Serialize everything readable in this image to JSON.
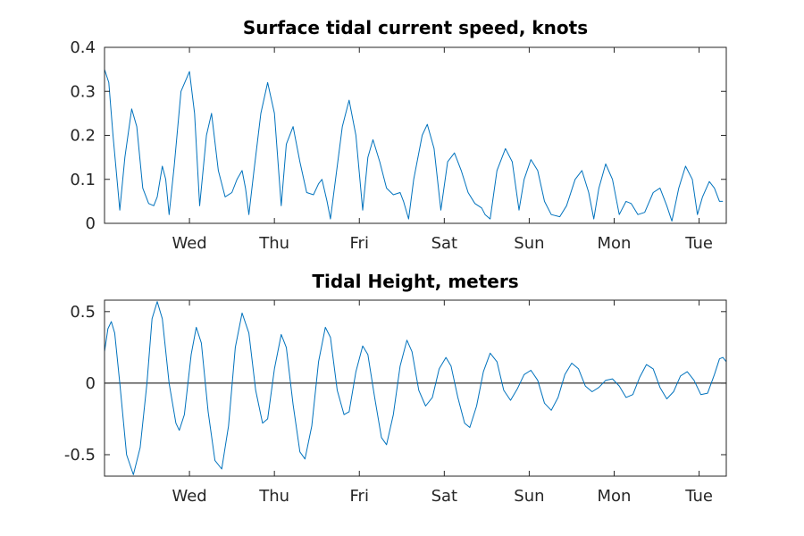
{
  "colors": {
    "series": "#0072BD",
    "axis": "#262626",
    "zero_line": "#000000"
  },
  "chart_data": [
    {
      "type": "line",
      "title": "Surface tidal current speed, knots",
      "xlabel": "",
      "ylabel": "",
      "xlim": [
        0,
        8
      ],
      "ylim": [
        0,
        0.4
      ],
      "grid": false,
      "x_ticks": [
        {
          "x": 1,
          "label": "Wed"
        },
        {
          "x": 2,
          "label": "Thu"
        },
        {
          "x": 3,
          "label": "Fri"
        },
        {
          "x": 4,
          "label": "Sat"
        },
        {
          "x": 5,
          "label": "Sun"
        },
        {
          "x": 6,
          "label": "Mon"
        },
        {
          "x": 7,
          "label": "Tue"
        }
      ],
      "y_ticks": [
        {
          "y": 0,
          "label": "0"
        },
        {
          "y": 0.1,
          "label": "0.1"
        },
        {
          "y": 0.2,
          "label": "0.2"
        },
        {
          "y": 0.3,
          "label": "0.3"
        },
        {
          "y": 0.4,
          "label": "0.4"
        }
      ],
      "series": [
        {
          "points": [
            [
              0.0,
              0.35
            ],
            [
              0.05,
              0.32
            ],
            [
              0.1,
              0.2
            ],
            [
              0.18,
              0.03
            ],
            [
              0.24,
              0.15
            ],
            [
              0.32,
              0.26
            ],
            [
              0.38,
              0.22
            ],
            [
              0.45,
              0.08
            ],
            [
              0.52,
              0.045
            ],
            [
              0.58,
              0.04
            ],
            [
              0.62,
              0.06
            ],
            [
              0.68,
              0.13
            ],
            [
              0.72,
              0.1
            ],
            [
              0.76,
              0.02
            ],
            [
              0.82,
              0.13
            ],
            [
              0.9,
              0.3
            ],
            [
              1.0,
              0.345
            ],
            [
              1.06,
              0.25
            ],
            [
              1.12,
              0.04
            ],
            [
              1.2,
              0.2
            ],
            [
              1.26,
              0.25
            ],
            [
              1.34,
              0.12
            ],
            [
              1.42,
              0.06
            ],
            [
              1.5,
              0.07
            ],
            [
              1.56,
              0.1
            ],
            [
              1.62,
              0.12
            ],
            [
              1.66,
              0.08
            ],
            [
              1.7,
              0.02
            ],
            [
              1.76,
              0.12
            ],
            [
              1.84,
              0.25
            ],
            [
              1.92,
              0.32
            ],
            [
              2.0,
              0.25
            ],
            [
              2.08,
              0.04
            ],
            [
              2.14,
              0.18
            ],
            [
              2.22,
              0.22
            ],
            [
              2.3,
              0.14
            ],
            [
              2.38,
              0.07
            ],
            [
              2.46,
              0.065
            ],
            [
              2.52,
              0.09
            ],
            [
              2.56,
              0.1
            ],
            [
              2.62,
              0.05
            ],
            [
              2.66,
              0.01
            ],
            [
              2.72,
              0.1
            ],
            [
              2.8,
              0.22
            ],
            [
              2.88,
              0.28
            ],
            [
              2.96,
              0.2
            ],
            [
              3.04,
              0.03
            ],
            [
              3.1,
              0.15
            ],
            [
              3.16,
              0.19
            ],
            [
              3.24,
              0.14
            ],
            [
              3.32,
              0.08
            ],
            [
              3.4,
              0.065
            ],
            [
              3.48,
              0.07
            ],
            [
              3.52,
              0.05
            ],
            [
              3.58,
              0.01
            ],
            [
              3.64,
              0.1
            ],
            [
              3.74,
              0.2
            ],
            [
              3.8,
              0.225
            ],
            [
              3.88,
              0.17
            ],
            [
              3.96,
              0.03
            ],
            [
              4.04,
              0.14
            ],
            [
              4.12,
              0.16
            ],
            [
              4.2,
              0.12
            ],
            [
              4.28,
              0.07
            ],
            [
              4.36,
              0.045
            ],
            [
              4.44,
              0.035
            ],
            [
              4.48,
              0.02
            ],
            [
              4.54,
              0.01
            ],
            [
              4.62,
              0.12
            ],
            [
              4.72,
              0.17
            ],
            [
              4.8,
              0.14
            ],
            [
              4.88,
              0.03
            ],
            [
              4.94,
              0.1
            ],
            [
              5.02,
              0.145
            ],
            [
              5.1,
              0.12
            ],
            [
              5.18,
              0.05
            ],
            [
              5.26,
              0.02
            ],
            [
              5.36,
              0.015
            ],
            [
              5.44,
              0.04
            ],
            [
              5.54,
              0.1
            ],
            [
              5.62,
              0.12
            ],
            [
              5.7,
              0.07
            ],
            [
              5.76,
              0.01
            ],
            [
              5.82,
              0.08
            ],
            [
              5.9,
              0.135
            ],
            [
              5.98,
              0.1
            ],
            [
              6.06,
              0.02
            ],
            [
              6.14,
              0.05
            ],
            [
              6.2,
              0.045
            ],
            [
              6.28,
              0.02
            ],
            [
              6.36,
              0.025
            ],
            [
              6.46,
              0.07
            ],
            [
              6.54,
              0.08
            ],
            [
              6.62,
              0.04
            ],
            [
              6.68,
              0.005
            ],
            [
              6.76,
              0.08
            ],
            [
              6.84,
              0.13
            ],
            [
              6.92,
              0.1
            ],
            [
              6.98,
              0.02
            ],
            [
              7.04,
              0.06
            ],
            [
              7.12,
              0.095
            ],
            [
              7.18,
              0.08
            ],
            [
              7.24,
              0.05
            ],
            [
              7.28,
              0.05
            ]
          ]
        }
      ]
    },
    {
      "type": "line",
      "title": "Tidal Height, meters",
      "xlabel": "",
      "ylabel": "",
      "xlim": [
        0,
        8
      ],
      "ylim": [
        -0.65,
        0.58
      ],
      "grid": false,
      "zero_line": true,
      "x_ticks": [
        {
          "x": 1,
          "label": "Wed"
        },
        {
          "x": 2,
          "label": "Thu"
        },
        {
          "x": 3,
          "label": "Fri"
        },
        {
          "x": 4,
          "label": "Sat"
        },
        {
          "x": 5,
          "label": "Sun"
        },
        {
          "x": 6,
          "label": "Mon"
        },
        {
          "x": 7,
          "label": "Tue"
        }
      ],
      "y_ticks": [
        {
          "y": -0.5,
          "label": "-0.5"
        },
        {
          "y": 0,
          "label": "0"
        },
        {
          "y": 0.5,
          "label": "0.5"
        }
      ],
      "series": [
        {
          "points": [
            [
              0.0,
              0.22
            ],
            [
              0.04,
              0.38
            ],
            [
              0.08,
              0.43
            ],
            [
              0.12,
              0.35
            ],
            [
              0.18,
              0.0
            ],
            [
              0.26,
              -0.5
            ],
            [
              0.34,
              -0.64
            ],
            [
              0.42,
              -0.45
            ],
            [
              0.5,
              0.0
            ],
            [
              0.56,
              0.45
            ],
            [
              0.62,
              0.57
            ],
            [
              0.68,
              0.45
            ],
            [
              0.76,
              0.0
            ],
            [
              0.84,
              -0.28
            ],
            [
              0.88,
              -0.33
            ],
            [
              0.94,
              -0.22
            ],
            [
              1.02,
              0.2
            ],
            [
              1.08,
              0.39
            ],
            [
              1.14,
              0.28
            ],
            [
              1.22,
              -0.2
            ],
            [
              1.3,
              -0.54
            ],
            [
              1.38,
              -0.6
            ],
            [
              1.46,
              -0.3
            ],
            [
              1.54,
              0.25
            ],
            [
              1.62,
              0.49
            ],
            [
              1.7,
              0.35
            ],
            [
              1.78,
              -0.05
            ],
            [
              1.86,
              -0.28
            ],
            [
              1.92,
              -0.25
            ],
            [
              2.0,
              0.1
            ],
            [
              2.08,
              0.34
            ],
            [
              2.14,
              0.25
            ],
            [
              2.22,
              -0.15
            ],
            [
              2.3,
              -0.48
            ],
            [
              2.36,
              -0.53
            ],
            [
              2.44,
              -0.3
            ],
            [
              2.52,
              0.15
            ],
            [
              2.6,
              0.39
            ],
            [
              2.66,
              0.32
            ],
            [
              2.74,
              -0.05
            ],
            [
              2.82,
              -0.22
            ],
            [
              2.88,
              -0.2
            ],
            [
              2.96,
              0.08
            ],
            [
              3.04,
              0.26
            ],
            [
              3.1,
              0.2
            ],
            [
              3.18,
              -0.1
            ],
            [
              3.26,
              -0.38
            ],
            [
              3.32,
              -0.43
            ],
            [
              3.4,
              -0.22
            ],
            [
              3.48,
              0.12
            ],
            [
              3.56,
              0.3
            ],
            [
              3.62,
              0.22
            ],
            [
              3.7,
              -0.05
            ],
            [
              3.78,
              -0.16
            ],
            [
              3.86,
              -0.1
            ],
            [
              3.94,
              0.1
            ],
            [
              4.02,
              0.18
            ],
            [
              4.08,
              0.12
            ],
            [
              4.16,
              -0.1
            ],
            [
              4.24,
              -0.28
            ],
            [
              4.3,
              -0.31
            ],
            [
              4.38,
              -0.16
            ],
            [
              4.46,
              0.08
            ],
            [
              4.54,
              0.21
            ],
            [
              4.62,
              0.15
            ],
            [
              4.7,
              -0.05
            ],
            [
              4.78,
              -0.12
            ],
            [
              4.86,
              -0.04
            ],
            [
              4.94,
              0.06
            ],
            [
              5.02,
              0.09
            ],
            [
              5.1,
              0.02
            ],
            [
              5.18,
              -0.14
            ],
            [
              5.26,
              -0.19
            ],
            [
              5.34,
              -0.1
            ],
            [
              5.42,
              0.06
            ],
            [
              5.5,
              0.14
            ],
            [
              5.58,
              0.1
            ],
            [
              5.66,
              -0.02
            ],
            [
              5.74,
              -0.06
            ],
            [
              5.82,
              -0.03
            ],
            [
              5.9,
              0.02
            ],
            [
              5.98,
              0.03
            ],
            [
              6.06,
              -0.02
            ],
            [
              6.14,
              -0.1
            ],
            [
              6.22,
              -0.08
            ],
            [
              6.3,
              0.04
            ],
            [
              6.38,
              0.13
            ],
            [
              6.46,
              0.1
            ],
            [
              6.54,
              -0.03
            ],
            [
              6.62,
              -0.11
            ],
            [
              6.7,
              -0.06
            ],
            [
              6.78,
              0.05
            ],
            [
              6.86,
              0.08
            ],
            [
              6.94,
              0.02
            ],
            [
              7.02,
              -0.08
            ],
            [
              7.1,
              -0.07
            ],
            [
              7.18,
              0.06
            ],
            [
              7.24,
              0.17
            ],
            [
              7.28,
              0.18
            ],
            [
              7.32,
              0.15
            ]
          ]
        }
      ]
    }
  ]
}
